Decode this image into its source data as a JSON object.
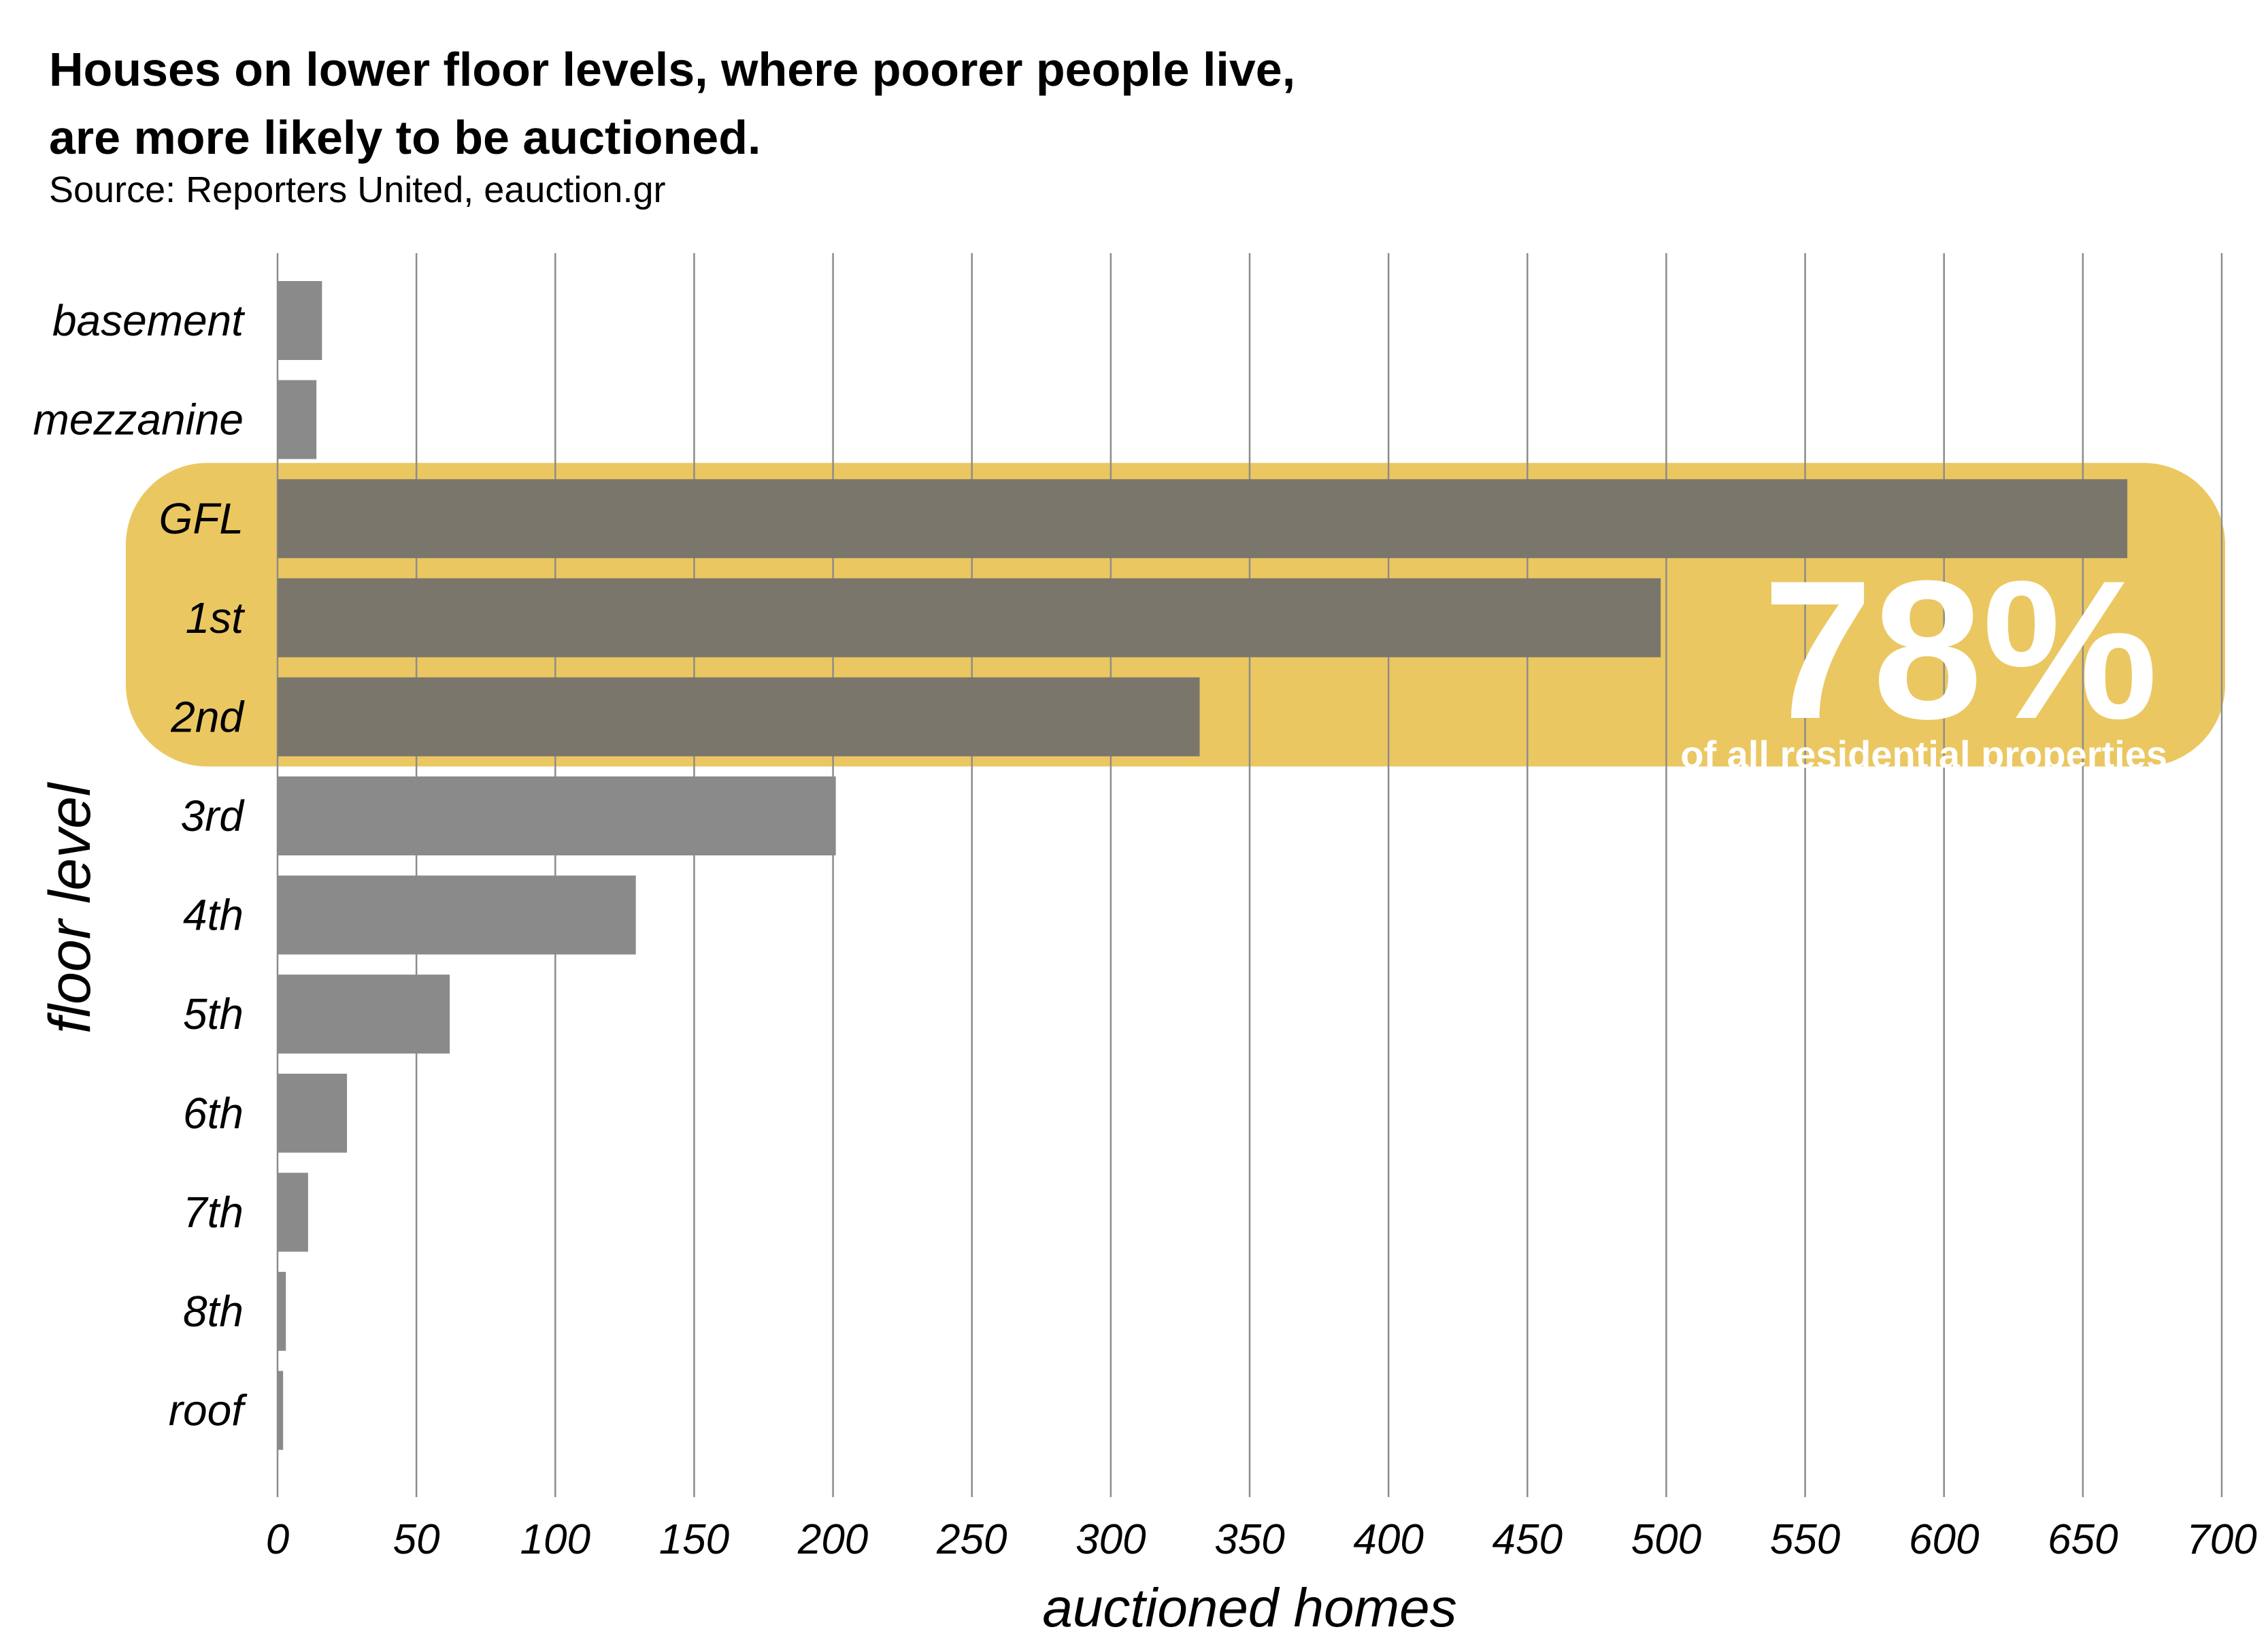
{
  "title_lines": [
    "Houses on lower floor levels, where poorer people live,",
    "are more likely to be auctioned."
  ],
  "subtitle": "Source: Reporters United, eauction.gr",
  "colors": {
    "bar": "#8a8a8a",
    "bar_highlight": "#7a766b",
    "highlight_box": "#ebc762",
    "gridline": "#8c8c8c",
    "callout_text": "#ffffff"
  },
  "callout": {
    "big": "78%",
    "small": "of all residential properties"
  },
  "chart_data": {
    "type": "bar",
    "orientation": "horizontal",
    "title": "Houses on lower floor levels, where poorer people live, are more likely to be auctioned.",
    "subtitle": "Source: Reporters United, eauction.gr",
    "xlabel": "auctioned homes",
    "ylabel": "floor level",
    "categories": [
      "basement",
      "mezzanine",
      "GFL",
      "1st",
      "2nd",
      "3rd",
      "4th",
      "5th",
      "6th",
      "7th",
      "8th",
      "roof"
    ],
    "values": [
      16,
      14,
      666,
      498,
      332,
      201,
      129,
      62,
      25,
      11,
      3,
      2
    ],
    "highlighted": [
      "GFL",
      "1st",
      "2nd"
    ],
    "xlim": [
      0,
      700
    ],
    "xticks": [
      "0",
      "50",
      "100",
      "150",
      "200",
      "250",
      "300",
      "350",
      "400",
      "450",
      "500",
      "550",
      "600",
      "650",
      "700"
    ],
    "grid": "vertical",
    "legend": "none"
  }
}
